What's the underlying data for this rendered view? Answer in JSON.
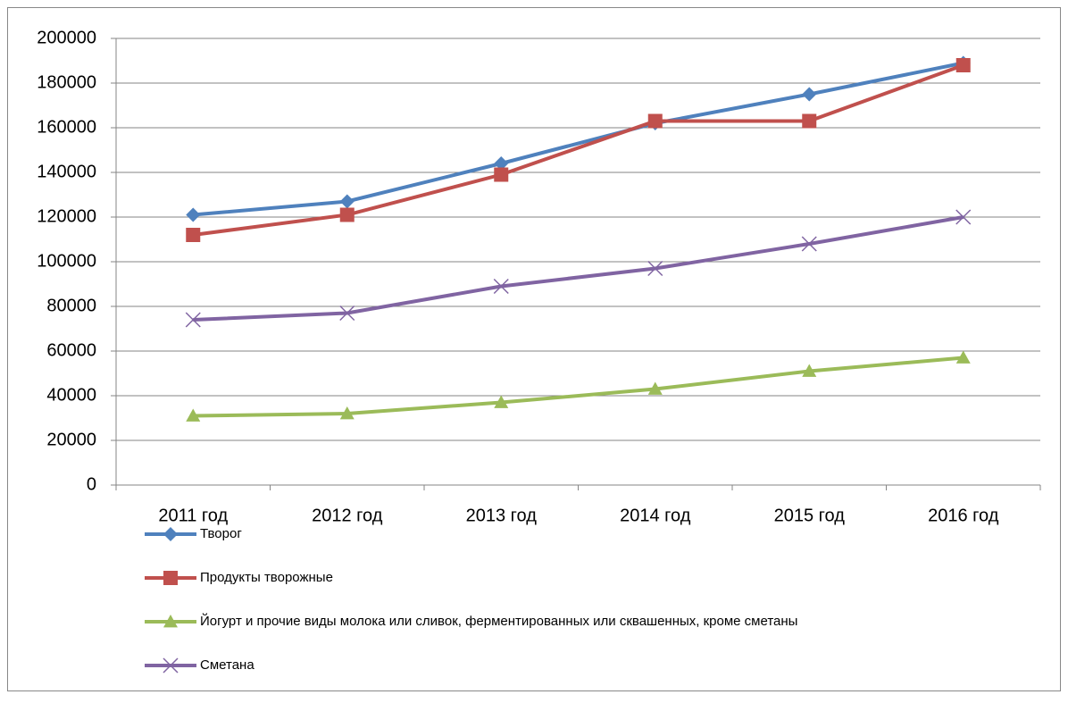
{
  "chart_data": {
    "type": "line",
    "categories": [
      "2011 год",
      "2012 год",
      "2013 год",
      "2014 год",
      "2015 год",
      "2016 год"
    ],
    "series": [
      {
        "name": "Творог",
        "color": "#4f81bd",
        "marker": "diamond",
        "values": [
          121000,
          127000,
          144000,
          162000,
          175000,
          189000
        ]
      },
      {
        "name": "Продукты творожные",
        "color": "#c0504d",
        "marker": "square",
        "values": [
          112000,
          121000,
          139000,
          163000,
          163000,
          188000
        ]
      },
      {
        "name": "Йогурт и прочие виды молока или сливок, ферментированных или сквашенных, кроме сметаны",
        "color": "#9bbb59",
        "marker": "triangle",
        "values": [
          31000,
          32000,
          37000,
          43000,
          51000,
          57000
        ]
      },
      {
        "name": "Сметана",
        "color": "#8064a2",
        "marker": "x",
        "values": [
          74000,
          77000,
          89000,
          97000,
          108000,
          120000
        ]
      }
    ],
    "ylim": [
      0,
      200000
    ],
    "yticks": [
      0,
      20000,
      40000,
      60000,
      80000,
      100000,
      120000,
      140000,
      160000,
      180000,
      200000
    ],
    "grid": true,
    "legend": "bottom"
  }
}
